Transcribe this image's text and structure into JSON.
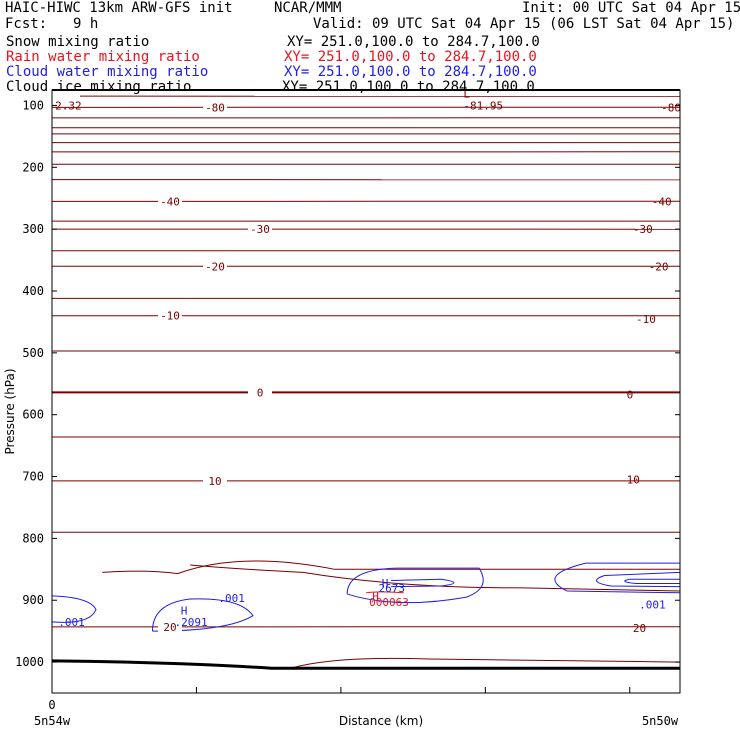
{
  "header": {
    "line1_left": "HAIC-HIWC 13km ARW-GFS init",
    "line1_center": "NCAR/MMM",
    "line1_right": "Init: 00 UTC Sat 04 Apr 15",
    "fcst_label": "Fcst:",
    "fcst_value": "9 h",
    "valid": "Valid: 09 UTC Sat 04 Apr 15 (06 LST Sat 04 Apr 15)"
  },
  "fields": [
    {
      "name": "Snow mixing ratio",
      "xy": "XY= 251.0,100.0 to 284.7,100.0",
      "color": "#000000"
    },
    {
      "name": "Rain water mixing ratio",
      "xy": "XY= 251.0,100.0 to 284.7,100.0",
      "color": "#e8141e"
    },
    {
      "name": "Cloud water mixing ratio",
      "xy": "XY= 251.0,100.0 to 284.7,100.0",
      "color": "#1e1ee6"
    },
    {
      "name": "Cloud ice mixing ratio",
      "xy": "XY= 251.0,100.0 to 284.7,100.0",
      "color": "#000000"
    }
  ],
  "chart_data": {
    "type": "contour",
    "ylabel": "Pressure (hPa)",
    "xlabel": "Distance (km)",
    "y_ticks": [
      100,
      200,
      300,
      400,
      500,
      600,
      700,
      800,
      900,
      1000
    ],
    "y_tick_labels": [
      "100",
      "200",
      "300",
      "400",
      "500",
      "600",
      "700",
      "800",
      "900",
      "1000"
    ],
    "ylim": [
      1050,
      75
    ],
    "x_tick_labels": {
      "start": "0",
      "left_end": "5n54w",
      "right_end": "5n50w"
    },
    "colors": {
      "temperature": "#7a0000",
      "ground": "#000000",
      "cloud_water": "#1e1ee6",
      "rain": "#e8141e"
    },
    "temperature_levels": [
      {
        "p": 85,
        "label": ""
      },
      {
        "p": 103,
        "label": "-80"
      },
      {
        "p": 120,
        "label": ""
      },
      {
        "p": 136,
        "label": ""
      },
      {
        "p": 146,
        "label": ""
      },
      {
        "p": 160,
        "label": ""
      },
      {
        "p": 175,
        "label": ""
      },
      {
        "p": 195,
        "label": ""
      },
      {
        "p": 220,
        "label": ""
      },
      {
        "p": 255,
        "label": "-40"
      },
      {
        "p": 287,
        "label": ""
      },
      {
        "p": 300,
        "label": "-30"
      },
      {
        "p": 335,
        "label": ""
      },
      {
        "p": 360,
        "label": "-20"
      },
      {
        "p": 412,
        "label": ""
      },
      {
        "p": 440,
        "label": "-10"
      },
      {
        "p": 497,
        "label": ""
      },
      {
        "p": 564,
        "label": "0"
      },
      {
        "p": 636,
        "label": ""
      },
      {
        "p": 707,
        "label": "10"
      },
      {
        "p": 790,
        "label": ""
      },
      {
        "p": 943,
        "label": "20"
      }
    ],
    "annotations": [
      {
        "text": "2.32",
        "p": 100,
        "x_frac": 0.005,
        "color": "#7a0000"
      },
      {
        "text": "L",
        "p": 81,
        "x_frac": 0.655,
        "color": "#7a0000"
      },
      {
        "text": "-81.95",
        "p": 100,
        "x_frac": 0.655,
        "color": "#7a0000"
      },
      {
        "text": "-80",
        "p": 103,
        "x_frac": 0.97,
        "color": "#7a0000"
      },
      {
        "text": "-40",
        "p": 255,
        "x_frac": 0.955,
        "color": "#7a0000"
      },
      {
        "text": "-30",
        "p": 300,
        "x_frac": 0.925,
        "color": "#7a0000"
      },
      {
        "text": "-20",
        "p": 360,
        "x_frac": 0.95,
        "color": "#7a0000"
      },
      {
        "text": "-10",
        "p": 445,
        "x_frac": 0.93,
        "color": "#7a0000"
      },
      {
        "text": "0",
        "p": 567,
        "x_frac": 0.915,
        "color": "#7a0000"
      },
      {
        "text": "10",
        "p": 705,
        "x_frac": 0.915,
        "color": "#7a0000"
      },
      {
        "text": "20",
        "p": 945,
        "x_frac": 0.925,
        "color": "#7a0000"
      },
      {
        "text": "H",
        "p": 872,
        "x_frac": 0.525,
        "color": "#1e1ee6"
      },
      {
        "text": "2673",
        "p": 880,
        "x_frac": 0.52,
        "color": "#1e1ee6"
      },
      {
        "text": "H",
        "p": 893,
        "x_frac": 0.51,
        "color": "#e8141e"
      },
      {
        "text": "000063",
        "p": 903,
        "x_frac": 0.505,
        "color": "#e8141e"
      },
      {
        "text": "H",
        "p": 917,
        "x_frac": 0.205,
        "color": "#1e1ee6"
      },
      {
        "text": ".2091",
        "p": 935,
        "x_frac": 0.195,
        "color": "#1e1ee6"
      },
      {
        "text": ".001",
        "p": 896,
        "x_frac": 0.265,
        "color": "#1e1ee6"
      },
      {
        "text": ".001",
        "p": 935,
        "x_frac": 0.01,
        "color": "#1e1ee6"
      },
      {
        "text": ".001",
        "p": 907,
        "x_frac": 0.935,
        "color": "#1e1ee6"
      }
    ]
  }
}
